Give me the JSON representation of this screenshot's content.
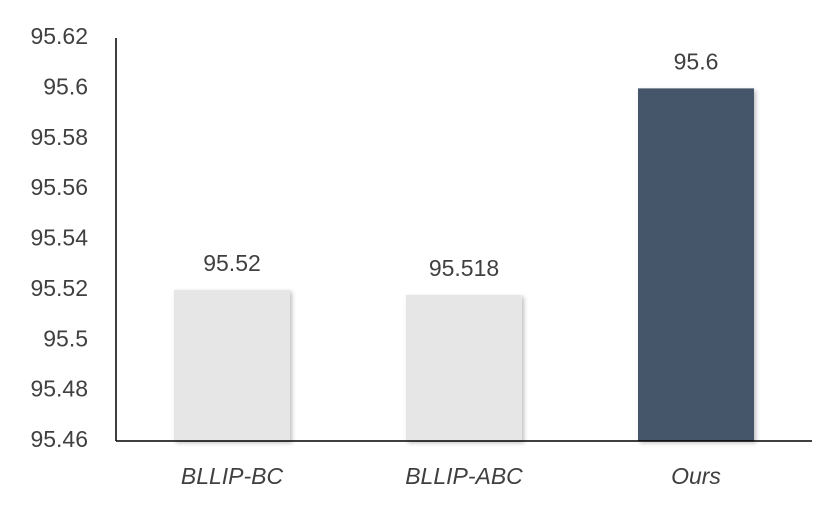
{
  "chart_data": {
    "type": "bar",
    "categories": [
      "BLLIP-BC",
      "BLLIP-ABC",
      "Ours"
    ],
    "values": [
      95.52,
      95.518,
      95.6
    ],
    "colors": [
      "#e6e6e6",
      "#e6e6e6",
      "#44546a"
    ],
    "ylim": [
      95.46,
      95.62
    ],
    "yticks": [
      95.46,
      95.48,
      95.5,
      95.52,
      95.54,
      95.56,
      95.58,
      95.6,
      95.62
    ],
    "grid": false
  }
}
